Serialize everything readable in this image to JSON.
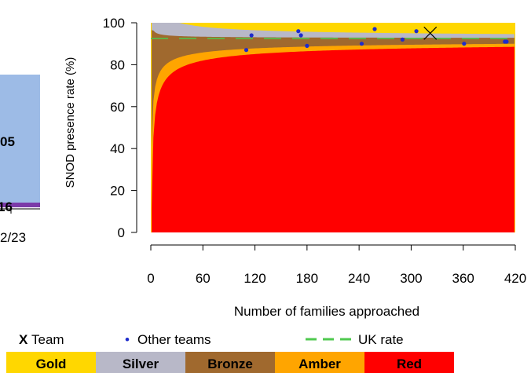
{
  "side_panel": {
    "bar_value": "05",
    "lower_value": "16",
    "period": "2/23",
    "bar_color": "#9dbbe6",
    "strip_color": "#7b3aa8"
  },
  "chart_data": {
    "type": "scatter",
    "title": "",
    "xlabel": "Number of families approached",
    "ylabel": "SNOD presence rate (%)",
    "xlim": [
      0,
      420
    ],
    "ylim": [
      0,
      100
    ],
    "xticks": [
      0,
      60,
      120,
      180,
      240,
      300,
      360,
      420
    ],
    "yticks": [
      0,
      20,
      40,
      60,
      80,
      100
    ],
    "grid": false,
    "uk_rate": 92.5,
    "team": {
      "name": "Team",
      "marker": "X",
      "x": 322,
      "y": 95
    },
    "other_teams": {
      "name": "Other teams",
      "points": [
        [
          110,
          87
        ],
        [
          116,
          94
        ],
        [
          170,
          96
        ],
        [
          173,
          94
        ],
        [
          180,
          89
        ],
        [
          243,
          90
        ],
        [
          258,
          97
        ],
        [
          290,
          92
        ],
        [
          306,
          96
        ],
        [
          361,
          90
        ],
        [
          408,
          91
        ],
        [
          410,
          91
        ]
      ]
    },
    "bands": [
      {
        "name": "Gold",
        "color": "#ffd700"
      },
      {
        "name": "Silver",
        "color": "#b8b8c8"
      },
      {
        "name": "Bronze",
        "color": "#a0692e"
      },
      {
        "name": "Amber",
        "color": "#ffa500"
      },
      {
        "name": "Red",
        "color": "#ff0000"
      }
    ],
    "legend": {
      "team_marker": "X",
      "team_label": "Team",
      "others_marker": "•",
      "others_label": "Other teams",
      "uk_label": "UK rate",
      "placement": "bottom"
    },
    "colors": {
      "uk_line": "#4fc94f",
      "others": "#1e2ccc",
      "team": "#000000"
    }
  }
}
